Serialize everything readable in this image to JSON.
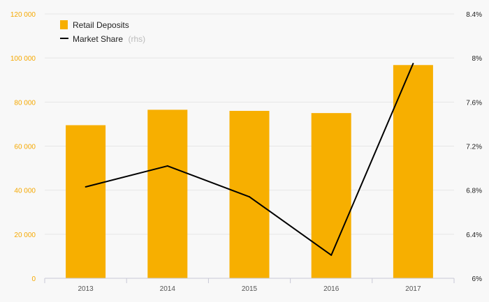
{
  "chart_data": {
    "type": "bar",
    "categories": [
      "2013",
      "2014",
      "2015",
      "2016",
      "2017"
    ],
    "series": [
      {
        "name": "Retail Deposits",
        "type": "bar",
        "axis": "left",
        "color": "#f7af00",
        "values": [
          69500,
          76500,
          76000,
          75000,
          96800
        ]
      },
      {
        "name": "Market Share",
        "name_note": "(rhs)",
        "type": "line",
        "axis": "right",
        "color": "#000000",
        "values": [
          6.83,
          7.02,
          6.74,
          6.21,
          7.95
        ]
      }
    ],
    "y_left": {
      "ylim": [
        0,
        120000
      ],
      "ticks": [
        0,
        20000,
        40000,
        60000,
        80000,
        100000,
        120000
      ],
      "tick_labels": [
        "0",
        "20 000",
        "40 000",
        "60 000",
        "80 000",
        "100 000",
        "120 000"
      ],
      "color": "#f5a800"
    },
    "y_right": {
      "ylim": [
        6.0,
        8.4
      ],
      "ticks": [
        6.0,
        6.4,
        6.8,
        7.2,
        7.6,
        8.0,
        8.4
      ],
      "tick_labels": [
        "6%",
        "6.4%",
        "6.8%",
        "7.2%",
        "7.6%",
        "8%",
        "8.4%"
      ],
      "color": "#222222"
    },
    "grid": true,
    "legend": {
      "placement": "top-left"
    }
  }
}
